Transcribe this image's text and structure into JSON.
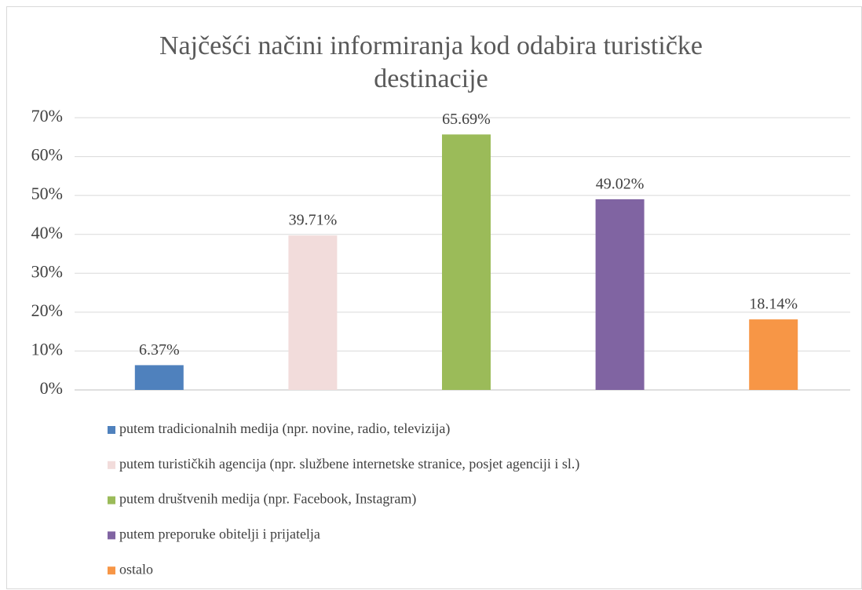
{
  "chart_data": {
    "type": "bar",
    "title": "Najčešći načini informiranja kod odabira turističke destinacije",
    "categories": [
      null
    ],
    "series": [
      {
        "name": "putem tradicionalnih medija (npr. novine, radio, televizija)",
        "color": "#4f81bd",
        "values": [
          6.37
        ],
        "value_labels": [
          "6.37%"
        ]
      },
      {
        "name": "putem turističkih agencija (npr. službene internetske stranice, posjet agenciji i sl.)",
        "color": "#f2dcdb",
        "values": [
          39.71
        ],
        "value_labels": [
          "39.71%"
        ]
      },
      {
        "name": "putem društvenih medija (npr. Facebook, Instagram)",
        "color": "#9bbb59",
        "values": [
          65.69
        ],
        "value_labels": [
          "65.69%"
        ]
      },
      {
        "name": "putem preporuke obitelji i prijatelja",
        "color": "#8064a2",
        "values": [
          49.02
        ],
        "value_labels": [
          "49.02%"
        ]
      },
      {
        "name": "ostalo",
        "color": "#f79646",
        "values": [
          18.14
        ],
        "value_labels": [
          "18.14%"
        ]
      }
    ],
    "ylim": [
      0,
      70
    ],
    "yticks": [
      {
        "value": 0,
        "label": "0%"
      },
      {
        "value": 10,
        "label": "10%"
      },
      {
        "value": 20,
        "label": "20%"
      },
      {
        "value": 30,
        "label": "30%"
      },
      {
        "value": 40,
        "label": "40%"
      },
      {
        "value": 50,
        "label": "50%"
      },
      {
        "value": 60,
        "label": "60%"
      },
      {
        "value": 70,
        "label": "70%"
      }
    ],
    "grid": true,
    "legend": "bottom"
  }
}
